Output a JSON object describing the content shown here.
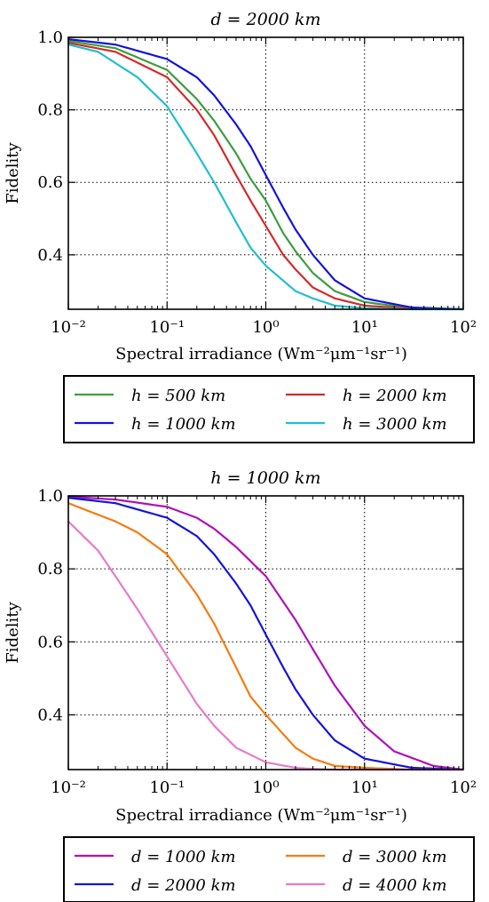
{
  "chart_data": [
    {
      "type": "line",
      "title": "d = 2000 km",
      "xlabel": "Spectral irradiance (Wm⁻²μm⁻¹sr⁻¹)",
      "ylabel": "Fidelity",
      "xscale": "log",
      "xlim": [
        0.01,
        100
      ],
      "ylim": [
        0.25,
        1.0
      ],
      "xticks": [
        "10⁻²",
        "10⁻¹",
        "10⁰",
        "10¹",
        "10²"
      ],
      "yticks": [
        "0.4",
        "0.6",
        "0.8",
        "1.0"
      ],
      "grid": true,
      "legend_position": "below",
      "series": [
        {
          "name": "h = 500 km",
          "color": "#3c9e3c",
          "x": [
            0.01,
            0.03,
            0.1,
            0.2,
            0.3,
            0.5,
            0.7,
            1,
            1.5,
            2,
            3,
            5,
            10,
            30,
            100
          ],
          "y": [
            0.99,
            0.97,
            0.91,
            0.83,
            0.77,
            0.68,
            0.61,
            0.55,
            0.46,
            0.41,
            0.35,
            0.3,
            0.27,
            0.253,
            0.25
          ]
        },
        {
          "name": "h = 2000 km",
          "color": "#d42a2a",
          "x": [
            0.01,
            0.03,
            0.1,
            0.2,
            0.3,
            0.5,
            0.7,
            1,
            1.5,
            2,
            3,
            5,
            10,
            30,
            100
          ],
          "y": [
            0.985,
            0.96,
            0.89,
            0.8,
            0.73,
            0.62,
            0.55,
            0.48,
            0.4,
            0.36,
            0.31,
            0.28,
            0.26,
            0.252,
            0.25
          ]
        },
        {
          "name": "h = 1000 km",
          "color": "#1414d8",
          "x": [
            0.01,
            0.03,
            0.1,
            0.2,
            0.3,
            0.5,
            0.7,
            1,
            1.5,
            2,
            3,
            5,
            10,
            30,
            100
          ],
          "y": [
            0.995,
            0.98,
            0.94,
            0.89,
            0.84,
            0.76,
            0.7,
            0.62,
            0.53,
            0.47,
            0.4,
            0.33,
            0.28,
            0.255,
            0.25
          ]
        },
        {
          "name": "h = 3000 km",
          "color": "#1fbfcf",
          "x": [
            0.01,
            0.02,
            0.05,
            0.1,
            0.2,
            0.3,
            0.5,
            0.7,
            1,
            2,
            3,
            5,
            10,
            30,
            100
          ],
          "y": [
            0.98,
            0.96,
            0.89,
            0.81,
            0.68,
            0.6,
            0.49,
            0.42,
            0.37,
            0.3,
            0.28,
            0.26,
            0.253,
            0.25,
            0.25
          ]
        }
      ]
    },
    {
      "type": "line",
      "title": "h = 1000 km",
      "xlabel": "Spectral irradiance (Wm⁻²μm⁻¹sr⁻¹)",
      "ylabel": "Fidelity",
      "xscale": "log",
      "xlim": [
        0.01,
        100
      ],
      "ylim": [
        0.25,
        1.0
      ],
      "xticks": [
        "10⁻²",
        "10⁻¹",
        "10⁰",
        "10¹",
        "10²"
      ],
      "yticks": [
        "0.4",
        "0.6",
        "0.8",
        "1.0"
      ],
      "grid": true,
      "legend_position": "below",
      "series": [
        {
          "name": "d = 1000 km",
          "color": "#b010b8",
          "x": [
            0.01,
            0.03,
            0.1,
            0.2,
            0.3,
            0.5,
            1,
            1.5,
            2,
            3,
            5,
            10,
            20,
            50,
            100
          ],
          "y": [
            0.998,
            0.99,
            0.97,
            0.94,
            0.91,
            0.86,
            0.78,
            0.71,
            0.66,
            0.58,
            0.48,
            0.37,
            0.3,
            0.26,
            0.25
          ]
        },
        {
          "name": "d = 3000 km",
          "color": "#f57c10",
          "x": [
            0.01,
            0.03,
            0.05,
            0.1,
            0.2,
            0.3,
            0.5,
            0.7,
            1,
            2,
            3,
            5,
            10,
            30,
            100
          ],
          "y": [
            0.98,
            0.93,
            0.9,
            0.84,
            0.73,
            0.65,
            0.53,
            0.45,
            0.4,
            0.31,
            0.28,
            0.26,
            0.255,
            0.25,
            0.25
          ]
        },
        {
          "name": "d = 2000 km",
          "color": "#1414d8",
          "x": [
            0.01,
            0.03,
            0.1,
            0.2,
            0.3,
            0.5,
            0.7,
            1,
            1.5,
            2,
            3,
            5,
            10,
            30,
            100
          ],
          "y": [
            0.995,
            0.98,
            0.94,
            0.89,
            0.84,
            0.76,
            0.7,
            0.62,
            0.53,
            0.47,
            0.4,
            0.33,
            0.28,
            0.255,
            0.25
          ]
        },
        {
          "name": "d = 4000 km",
          "color": "#e87ac8",
          "x": [
            0.01,
            0.02,
            0.03,
            0.05,
            0.1,
            0.2,
            0.3,
            0.5,
            1,
            2,
            3,
            5,
            10,
            30,
            100
          ],
          "y": [
            0.93,
            0.85,
            0.78,
            0.69,
            0.56,
            0.43,
            0.37,
            0.31,
            0.27,
            0.255,
            0.252,
            0.25,
            0.25,
            0.25,
            0.25
          ]
        }
      ]
    }
  ]
}
